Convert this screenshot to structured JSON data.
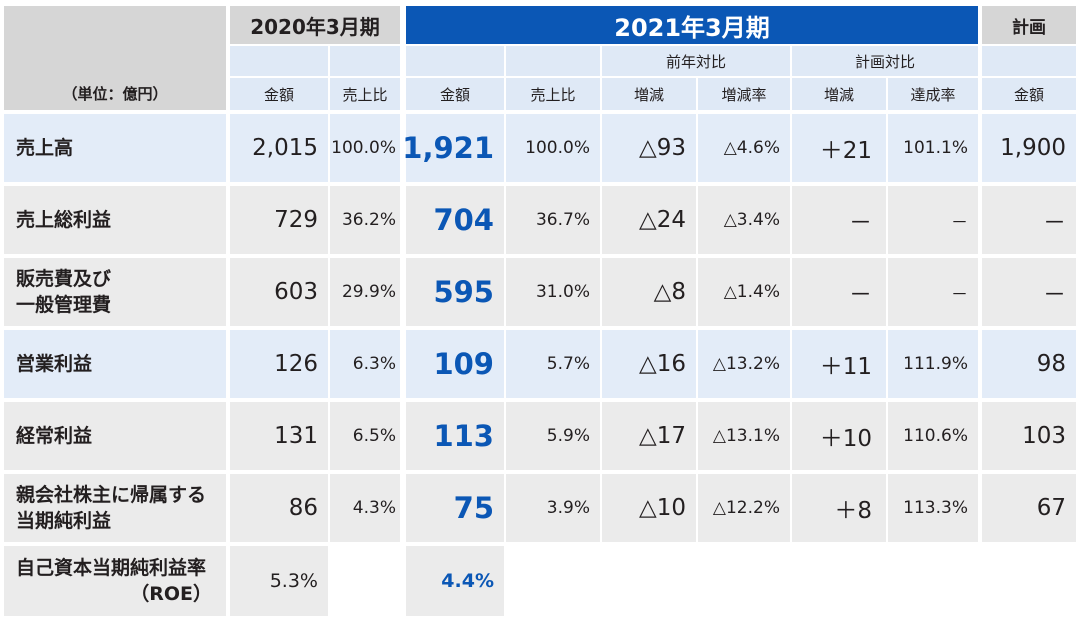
{
  "header": {
    "unit_label": "（単位：億円）",
    "period_prev": "2020年3月期",
    "period_curr": "2021年3月期",
    "plan": "計画",
    "yoy_group": "前年対比",
    "plan_group": "計画対比",
    "cols": {
      "prev_amount": "金額",
      "prev_ratio": "売上比",
      "curr_amount": "金額",
      "curr_ratio": "売上比",
      "yoy_change": "増減",
      "yoy_rate": "増減率",
      "plan_change": "増減",
      "plan_achievement": "達成率",
      "plan_amount": "金額"
    }
  },
  "rows": [
    {
      "label1": "売上高",
      "label2": "",
      "prev_amount": "2,015",
      "prev_ratio": "100.0%",
      "curr_amount": "1,921",
      "curr_ratio": "100.0%",
      "yoy_change": "△93",
      "yoy_rate": "△4.6%",
      "plan_change": "＋21",
      "plan_achievement": "101.1%",
      "plan_amount": "1,900"
    },
    {
      "label1": "売上総利益",
      "label2": "",
      "prev_amount": "729",
      "prev_ratio": "36.2%",
      "curr_amount": "704",
      "curr_ratio": "36.7%",
      "yoy_change": "△24",
      "yoy_rate": "△3.4%",
      "plan_change": "－",
      "plan_achievement": "－",
      "plan_amount": "－"
    },
    {
      "label1": "販売費及び",
      "label2": "一般管理費",
      "prev_amount": "603",
      "prev_ratio": "29.9%",
      "curr_amount": "595",
      "curr_ratio": "31.0%",
      "yoy_change": "△8",
      "yoy_rate": "△1.4%",
      "plan_change": "－",
      "plan_achievement": "－",
      "plan_amount": "－"
    },
    {
      "label1": "営業利益",
      "label2": "",
      "prev_amount": "126",
      "prev_ratio": "6.3%",
      "curr_amount": "109",
      "curr_ratio": "5.7%",
      "yoy_change": "△16",
      "yoy_rate": "△13.2%",
      "plan_change": "＋11",
      "plan_achievement": "111.9%",
      "plan_amount": "98"
    },
    {
      "label1": "経常利益",
      "label2": "",
      "prev_amount": "131",
      "prev_ratio": "6.5%",
      "curr_amount": "113",
      "curr_ratio": "5.9%",
      "yoy_change": "△17",
      "yoy_rate": "△13.1%",
      "plan_change": "＋10",
      "plan_achievement": "110.6%",
      "plan_amount": "103"
    },
    {
      "label1": "親会社株主に帰属する",
      "label2": "当期純利益",
      "prev_amount": "86",
      "prev_ratio": "4.3%",
      "curr_amount": "75",
      "curr_ratio": "3.9%",
      "yoy_change": "△10",
      "yoy_rate": "△12.2%",
      "plan_change": "＋8",
      "plan_achievement": "113.3%",
      "plan_amount": "67"
    }
  ],
  "roe": {
    "label1": "自己資本当期純利益率",
    "label2": "（ROE）",
    "prev": "5.3%",
    "curr": "4.4%"
  }
}
